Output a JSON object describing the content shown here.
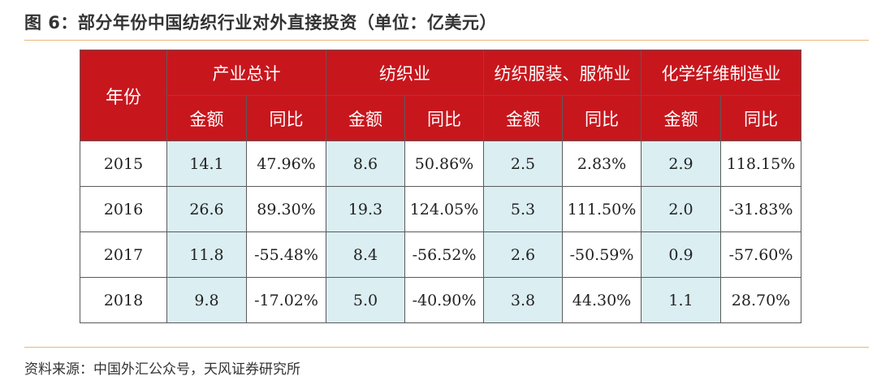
{
  "title": "图 6：部分年份中国纺织行业对外直接投资（单位：亿美元）",
  "source": "资料来源：中国外汇公众号，天风证券研究所",
  "table": {
    "year_header": "年份",
    "groups": [
      "产业总计",
      "纺织业",
      "纺织服装、服饰业",
      "化学纤维制造业"
    ],
    "sub_headers": [
      "金额",
      "同比"
    ],
    "rows": [
      {
        "year": "2015",
        "cells": [
          "14.1",
          "47.96%",
          "8.6",
          "50.86%",
          "2.5",
          "2.83%",
          "2.9",
          "118.15%"
        ]
      },
      {
        "year": "2016",
        "cells": [
          "26.6",
          "89.30%",
          "19.3",
          "124.05%",
          "5.3",
          "111.50%",
          "2.0",
          "-31.83%"
        ]
      },
      {
        "year": "2017",
        "cells": [
          "11.8",
          "-55.48%",
          "8.4",
          "-56.52%",
          "2.6",
          "-50.59%",
          "0.9",
          "-57.60%"
        ]
      },
      {
        "year": "2018",
        "cells": [
          "9.8",
          "-17.02%",
          "5.0",
          "-40.90%",
          "3.8",
          "44.30%",
          "1.1",
          "28.70%"
        ]
      }
    ]
  },
  "colors": {
    "header_bg": "#c8161d",
    "amount_bg": "#dbeef2",
    "rule": "#e9b87a"
  }
}
